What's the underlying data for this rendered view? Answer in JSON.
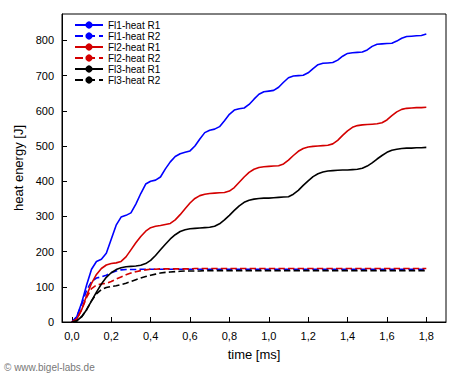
{
  "chart_data": {
    "type": "line",
    "x_label": "time [ms]",
    "y_label": "heat energy [J]",
    "watermark": "© www.bigel-labs.de",
    "legend": "upper left",
    "grid": false,
    "xlim": [
      -0.05,
      1.9
    ],
    "ylim": [
      0,
      875
    ],
    "xticks": [
      {
        "value": 0,
        "label": "0,0"
      },
      {
        "value": 0.2,
        "label": "0,2"
      },
      {
        "value": 0.4,
        "label": "0,4"
      },
      {
        "value": 0.6,
        "label": "0,6"
      },
      {
        "value": 0.8,
        "label": "0,8"
      },
      {
        "value": 1.0,
        "label": "1,0"
      },
      {
        "value": 1.2,
        "label": "1,2"
      },
      {
        "value": 1.4,
        "label": "1,4"
      },
      {
        "value": 1.6,
        "label": "1,6"
      },
      {
        "value": 1.8,
        "label": "1,8"
      }
    ],
    "yticks": [
      0,
      100,
      200,
      300,
      400,
      500,
      600,
      700,
      800
    ],
    "x": [
      0,
      0.025,
      0.05,
      0.075,
      0.1,
      0.125,
      0.15,
      0.175,
      0.2,
      0.225,
      0.25,
      0.275,
      0.3,
      0.325,
      0.35,
      0.375,
      0.4,
      0.425,
      0.45,
      0.475,
      0.5,
      0.525,
      0.55,
      0.575,
      0.6,
      0.625,
      0.65,
      0.675,
      0.7,
      0.725,
      0.75,
      0.775,
      0.8,
      0.825,
      0.85,
      0.875,
      0.9,
      0.925,
      0.95,
      0.975,
      1.0,
      1.025,
      1.05,
      1.075,
      1.1,
      1.125,
      1.15,
      1.175,
      1.2,
      1.225,
      1.25,
      1.275,
      1.3,
      1.325,
      1.35,
      1.375,
      1.4,
      1.425,
      1.45,
      1.475,
      1.5,
      1.525,
      1.55,
      1.575,
      1.6,
      1.625,
      1.65,
      1.675,
      1.7,
      1.725,
      1.75,
      1.775,
      1.8
    ],
    "series": [
      {
        "name": "Fl1-heat R1",
        "color": "#0000ff",
        "line_style": "solid",
        "marker": "none",
        "values": [
          0,
          15,
          55,
          105,
          150,
          172,
          178,
          195,
          235,
          275,
          298,
          303,
          310,
          335,
          365,
          392,
          400,
          403,
          412,
          435,
          455,
          470,
          478,
          482,
          486,
          500,
          520,
          538,
          545,
          548,
          555,
          572,
          590,
          602,
          606,
          608,
          618,
          633,
          647,
          654,
          656,
          658,
          667,
          681,
          694,
          699,
          700,
          701,
          708,
          720,
          731,
          735,
          736,
          737,
          744,
          755,
          763,
          765,
          766,
          767,
          773,
          783,
          789,
          790,
          791,
          792,
          798,
          806,
          811,
          812,
          813,
          814,
          818
        ]
      },
      {
        "name": "Fl1-heat R2",
        "color": "#0000ff",
        "line_style": "dashed",
        "marker": "none",
        "values": [
          0,
          15,
          50,
          90,
          115,
          125,
          128,
          133,
          140,
          145,
          148,
          149,
          149,
          149,
          150,
          150,
          150,
          150,
          150,
          150,
          150,
          150,
          150,
          150,
          150,
          150,
          150,
          150,
          150,
          150,
          150,
          150,
          150,
          150,
          150,
          150,
          150,
          150,
          150,
          150,
          150,
          150,
          150,
          150,
          150,
          150,
          150,
          150,
          150,
          150,
          150,
          150,
          150,
          150,
          150,
          150,
          150,
          150,
          150,
          150,
          150,
          150,
          150,
          150,
          150,
          150,
          150,
          150,
          150,
          150,
          150,
          150,
          150
        ]
      },
      {
        "name": "Fl2-heat R1",
        "color": "#d40000",
        "line_style": "solid",
        "marker": "none",
        "values": [
          0,
          8,
          35,
          75,
          110,
          135,
          152,
          162,
          166,
          168,
          172,
          185,
          205,
          225,
          243,
          258,
          268,
          272,
          274,
          277,
          280,
          290,
          305,
          322,
          338,
          351,
          359,
          363,
          365,
          366,
          367,
          368,
          372,
          382,
          397,
          412,
          425,
          434,
          439,
          441,
          442,
          443,
          444,
          449,
          460,
          473,
          485,
          493,
          497,
          499,
          500,
          501,
          502,
          506,
          516,
          530,
          543,
          553,
          558,
          560,
          561,
          562,
          563,
          566,
          574,
          586,
          597,
          604,
          607,
          608,
          609,
          609,
          610
        ]
      },
      {
        "name": "Fl2-heat R2",
        "color": "#d40000",
        "line_style": "dashed",
        "marker": "none",
        "values": [
          0,
          8,
          35,
          70,
          95,
          105,
          108,
          110,
          115,
          122,
          128,
          134,
          139,
          143,
          146,
          148,
          150,
          150,
          151,
          151,
          151,
          151,
          151,
          151,
          151,
          152,
          152,
          152,
          152,
          152,
          152,
          152,
          152,
          152,
          152,
          152,
          152,
          152,
          152,
          152,
          152,
          152,
          152,
          152,
          152,
          152,
          152,
          152,
          152,
          152,
          152,
          152,
          152,
          152,
          152,
          152,
          152,
          152,
          152,
          152,
          152,
          152,
          152,
          152,
          152,
          152,
          152,
          152,
          152,
          152,
          152,
          152,
          152
        ]
      },
      {
        "name": "Fl3-heat R1",
        "color": "#000000",
        "line_style": "solid",
        "marker": "none",
        "values": [
          0,
          3,
          15,
          35,
          60,
          85,
          108,
          127,
          140,
          149,
          154,
          157,
          158,
          159,
          161,
          166,
          175,
          189,
          205,
          221,
          236,
          248,
          257,
          262,
          265,
          266,
          267,
          268,
          269,
          272,
          279,
          290,
          303,
          317,
          330,
          340,
          346,
          349,
          351,
          352,
          352,
          353,
          354,
          355,
          356,
          363,
          374,
          388,
          401,
          413,
          421,
          426,
          429,
          430,
          431,
          432,
          432,
          433,
          434,
          437,
          443,
          452,
          463,
          473,
          482,
          488,
          491,
          493,
          494,
          494,
          495,
          495,
          496
        ]
      },
      {
        "name": "Fl3-heat R2",
        "color": "#000000",
        "line_style": "dashed",
        "marker": "none",
        "values": [
          0,
          3,
          15,
          35,
          60,
          80,
          92,
          98,
          101,
          103,
          106,
          110,
          115,
          120,
          125,
          129,
          133,
          136,
          139,
          141,
          142,
          143,
          144,
          145,
          145,
          145,
          145,
          146,
          146,
          146,
          146,
          146,
          146,
          146,
          146,
          146,
          146,
          146,
          146,
          146,
          146,
          146,
          146,
          146,
          146,
          146,
          146,
          146,
          146,
          146,
          146,
          146,
          146,
          146,
          146,
          146,
          146,
          146,
          146,
          146,
          146,
          146,
          146,
          146,
          146,
          146,
          146,
          146,
          146,
          146,
          146,
          146,
          146
        ]
      }
    ]
  }
}
